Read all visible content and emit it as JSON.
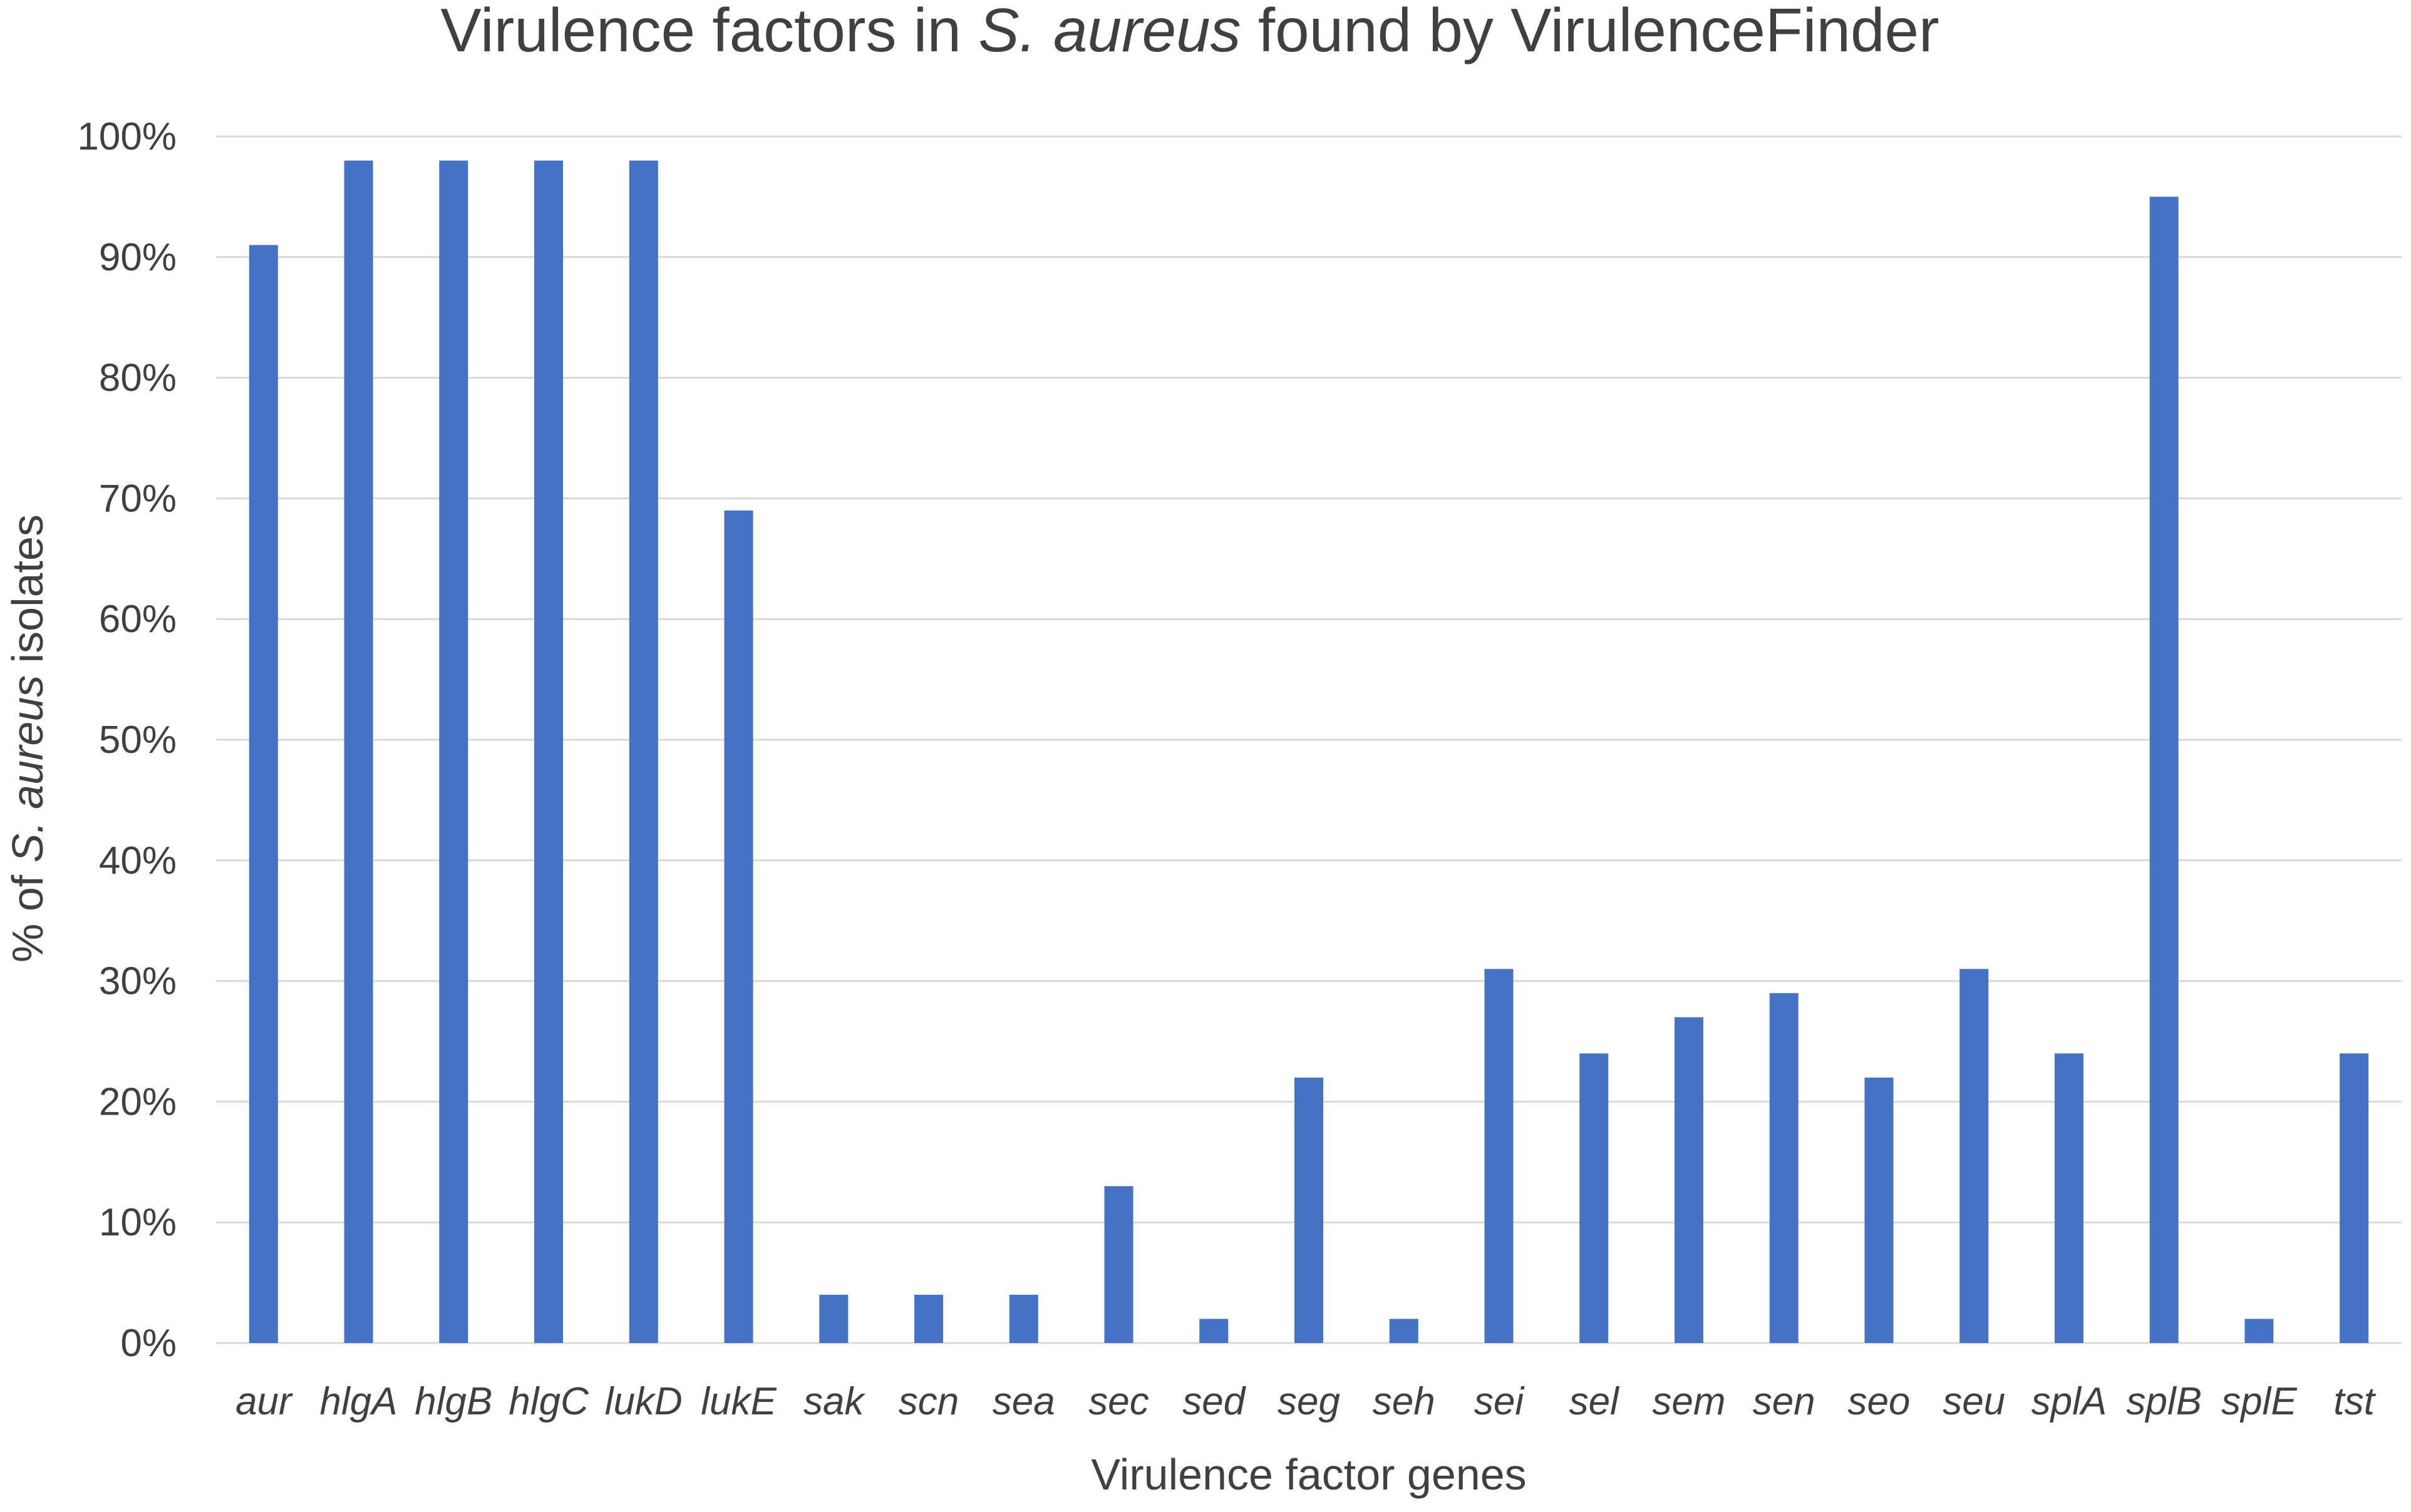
{
  "chart_data": {
    "type": "bar",
    "title": {
      "prefix": "Virulence factors in ",
      "italic": "S. aureus",
      "suffix": " found by VirulenceFinder"
    },
    "xlabel": "Virulence factor genes",
    "ylabel": {
      "prefix": "% of ",
      "italic": "S. aureus",
      "suffix": " isolates"
    },
    "ylim": [
      0,
      100
    ],
    "yticks": [
      "0%",
      "10%",
      "20%",
      "30%",
      "40%",
      "50%",
      "60%",
      "70%",
      "80%",
      "90%",
      "100%"
    ],
    "grid": true,
    "legend": "none",
    "bar_color": "#4472c4",
    "categories": [
      "aur",
      "hlgA",
      "hlgB",
      "hlgC",
      "lukD",
      "lukE",
      "sak",
      "scn",
      "sea",
      "sec",
      "sed",
      "seg",
      "seh",
      "sei",
      "sel",
      "sem",
      "sen",
      "seo",
      "seu",
      "splA",
      "splB",
      "splE",
      "tst"
    ],
    "values": [
      91,
      98,
      98,
      98,
      98,
      69,
      4,
      4,
      4,
      13,
      2,
      22,
      2,
      31,
      24,
      27,
      29,
      22,
      31,
      24,
      95,
      2,
      24
    ]
  }
}
